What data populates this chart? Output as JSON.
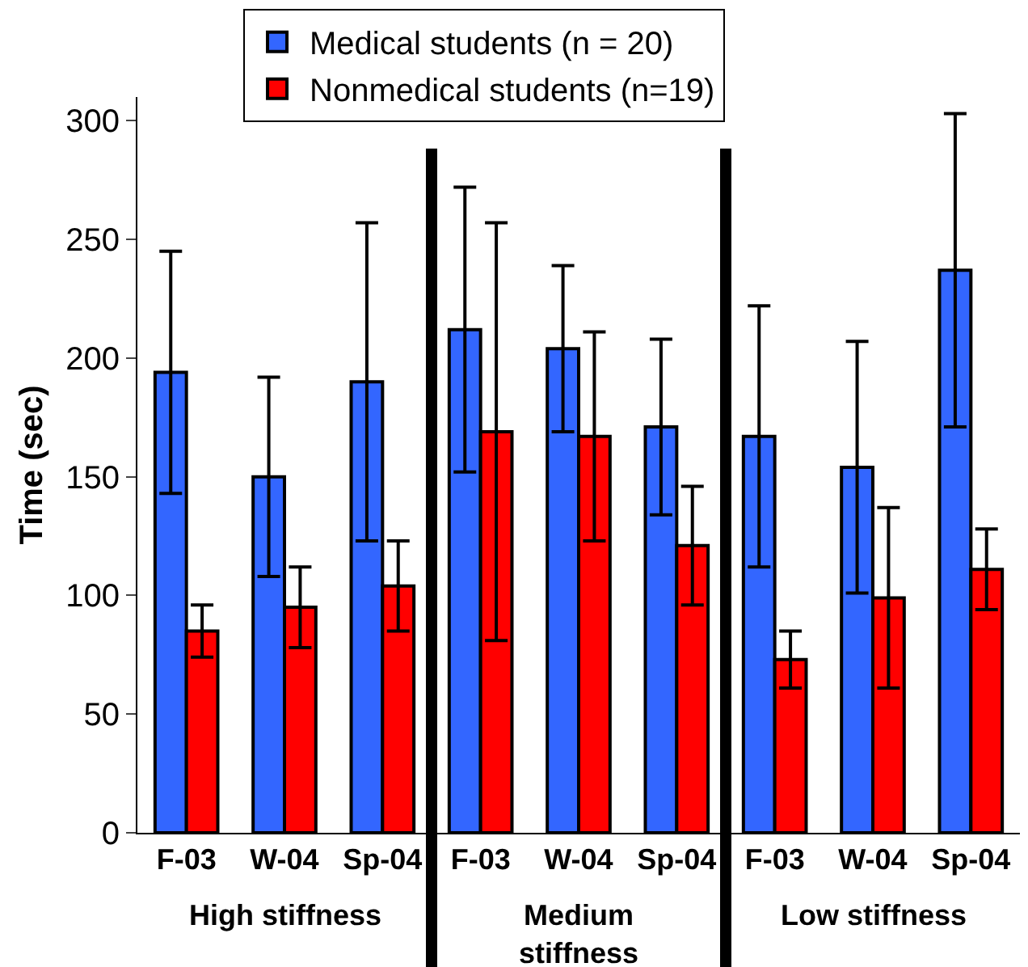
{
  "chart_data": {
    "type": "bar",
    "ylabel": "Time (sec)",
    "categories": [
      "F-03",
      "W-04",
      "Sp-04",
      "F-03",
      "W-04",
      "Sp-04",
      "F-03",
      "W-04",
      "Sp-04"
    ],
    "series": [
      {
        "name": "Medical students (n = 20)",
        "color": "#3366ff",
        "values": [
          194,
          150,
          190,
          212,
          204,
          171,
          167,
          154,
          237
        ],
        "errors": [
          51,
          42,
          67,
          60,
          35,
          37,
          55,
          53,
          66
        ]
      },
      {
        "name": "Nonmedical students (n=19)",
        "color": "#ff0000",
        "values": [
          85,
          95,
          104,
          169,
          167,
          121,
          73,
          99,
          111
        ],
        "errors": [
          11,
          17,
          19,
          88,
          44,
          25,
          12,
          38,
          17
        ]
      }
    ],
    "ylim": [
      0,
      310
    ],
    "yticks": [
      0,
      50,
      100,
      150,
      200,
      250,
      300
    ],
    "grid": false,
    "legend": "top",
    "annotations": [
      "High stiffness",
      "Medium\nstiffness",
      "Low stiffness"
    ]
  }
}
